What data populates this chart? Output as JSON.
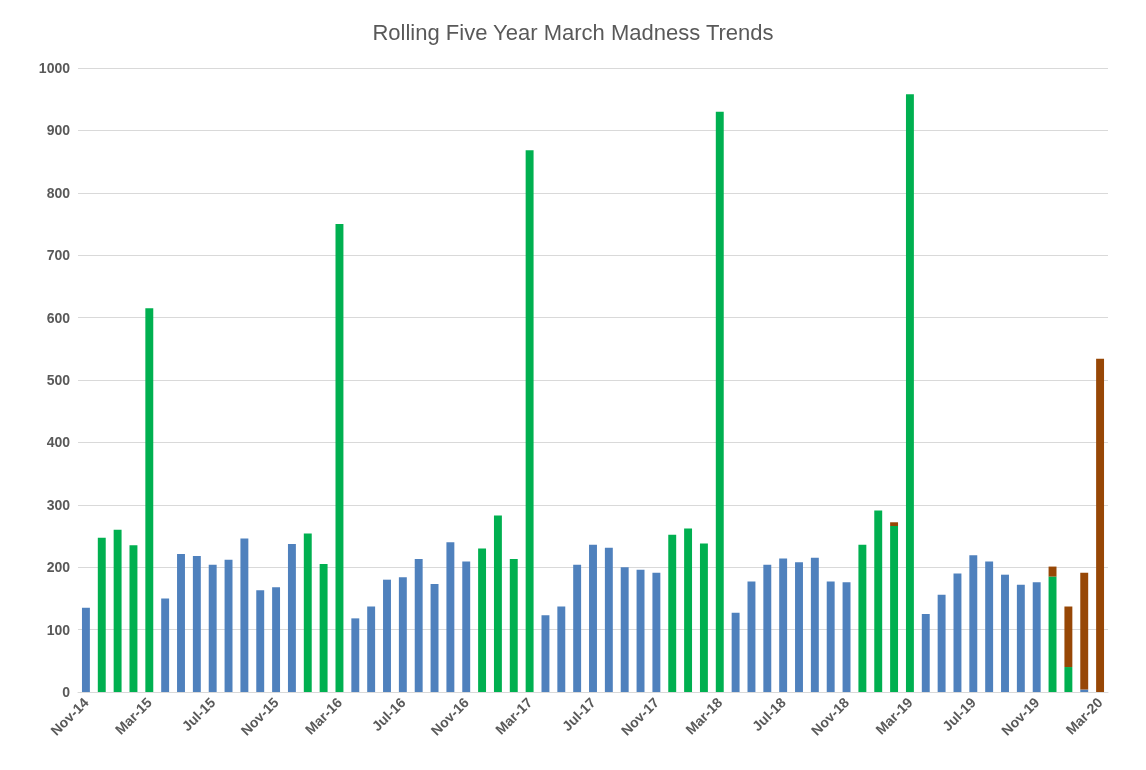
{
  "chart_data": {
    "type": "bar",
    "title": "Rolling Five Year March Madness Trends",
    "stacked": true,
    "grid": "y",
    "categories": [
      "Nov-14",
      null,
      null,
      null,
      "Mar-15",
      null,
      null,
      null,
      "Jul-15",
      null,
      null,
      null,
      "Nov-15",
      null,
      null,
      null,
      "Mar-16",
      null,
      null,
      null,
      "Jul-16",
      null,
      null,
      null,
      "Nov-16",
      null,
      null,
      null,
      "Mar-17",
      null,
      null,
      null,
      "Jul-17",
      null,
      null,
      null,
      "Nov-17",
      null,
      null,
      null,
      "Mar-18",
      null,
      null,
      null,
      "Jul-18",
      null,
      null,
      null,
      "Nov-18",
      null,
      null,
      null,
      "Mar-19",
      null,
      null,
      null,
      "Jul-19",
      null,
      null,
      null,
      "Nov-19",
      null,
      null,
      null,
      "Mar-20"
    ],
    "ylim": [
      0,
      1000
    ],
    "yticks": [
      0,
      100,
      200,
      300,
      400,
      500,
      600,
      700,
      800,
      900,
      1000
    ],
    "series": [
      {
        "color": "#4f81bd",
        "values": [
          135,
          null,
          null,
          null,
          null,
          150,
          221,
          218,
          204,
          212,
          246,
          163,
          168,
          237,
          null,
          null,
          null,
          118,
          137,
          180,
          184,
          213,
          173,
          240,
          209,
          null,
          null,
          null,
          null,
          123,
          137,
          204,
          236,
          231,
          200,
          196,
          191,
          null,
          null,
          null,
          null,
          127,
          177,
          204,
          214,
          208,
          215,
          177,
          176,
          null,
          null,
          null,
          null,
          125,
          156,
          190,
          219,
          209,
          188,
          172,
          176,
          null,
          null,
          4,
          null
        ]
      },
      {
        "color": "#00b050",
        "values": [
          null,
          247,
          260,
          235,
          615,
          null,
          null,
          null,
          null,
          null,
          null,
          null,
          null,
          null,
          254,
          205,
          750,
          null,
          null,
          null,
          null,
          null,
          null,
          null,
          null,
          230,
          283,
          213,
          868,
          null,
          null,
          null,
          null,
          null,
          null,
          null,
          null,
          252,
          262,
          238,
          930,
          null,
          null,
          null,
          null,
          null,
          null,
          null,
          null,
          236,
          291,
          266,
          958,
          null,
          null,
          null,
          null,
          null,
          null,
          null,
          null,
          185,
          40,
          null,
          null
        ]
      },
      {
        "color": "#974706",
        "values": [
          null,
          null,
          null,
          null,
          null,
          null,
          null,
          null,
          null,
          null,
          null,
          null,
          null,
          null,
          null,
          null,
          null,
          null,
          null,
          null,
          null,
          null,
          null,
          null,
          null,
          null,
          null,
          null,
          null,
          null,
          null,
          null,
          null,
          null,
          null,
          null,
          null,
          null,
          null,
          null,
          null,
          null,
          null,
          null,
          null,
          null,
          null,
          null,
          null,
          null,
          null,
          6,
          null,
          null,
          null,
          null,
          null,
          null,
          null,
          null,
          null,
          16,
          97,
          187,
          534
        ]
      }
    ]
  }
}
